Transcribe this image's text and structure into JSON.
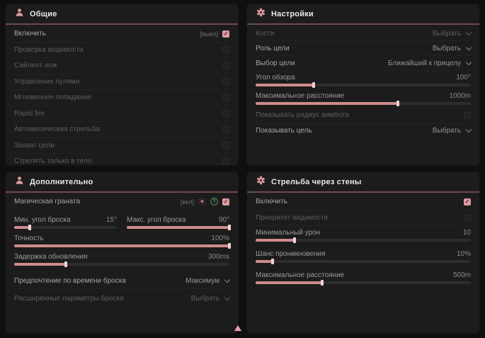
{
  "colors": {
    "accent_pink": "#dc969c",
    "slider_fill": "#cf8b8d",
    "panel_bg": "#1c1c1c",
    "page_bg": "#0f0f0f",
    "header_divider": "#6d4b50"
  },
  "panels": {
    "general": {
      "title": "Общие",
      "rows": [
        {
          "label": "Включить",
          "state": "[выкл]",
          "checked": true
        },
        {
          "label": "Проверка видимости",
          "checked": false
        },
        {
          "label": "Сайлент нож",
          "checked": false
        },
        {
          "label": "Управление пулями",
          "checked": false
        },
        {
          "label": "Мгновенное попадание",
          "checked": false
        },
        {
          "label": "Rapid fire",
          "checked": false
        },
        {
          "label": "Автоматическая стрельба",
          "checked": false
        },
        {
          "label": "Захват цели",
          "checked": false
        },
        {
          "label": "Стрелять только в тело",
          "checked": false
        }
      ]
    },
    "settings": {
      "title": "Настройки",
      "rows": {
        "bones": {
          "label": "Кости",
          "value": "Выбрать"
        },
        "target_role": {
          "label": "Роль цели",
          "value": "Выбрать"
        },
        "target_select": {
          "label": "Выбор цели",
          "value": "Ближайший к прицелу"
        },
        "fov": {
          "label": "Угол обзора",
          "value": "100°",
          "fill": 27
        },
        "max_distance": {
          "label": "Максимальное расстояние",
          "value": "1000m",
          "fill": 66
        },
        "show_radius": {
          "label": "Показывать радиус аимбота",
          "checked": false
        },
        "show_target": {
          "label": "Показывать цель",
          "value": "Выбрать"
        }
      }
    },
    "additional": {
      "title": "Дополнительно",
      "rows": {
        "magic_grenade": {
          "label": "Магическая граната",
          "state": "[вкл]",
          "checked": true
        },
        "min_angle": {
          "label": "Мин. угол броска",
          "value": "15°",
          "fill": 15
        },
        "max_angle": {
          "label": "Макс. угол броска",
          "value": "90°",
          "fill": 100
        },
        "accuracy": {
          "label": "Точность",
          "value": "100%",
          "fill": 100
        },
        "delay": {
          "label": "Задержка обновления",
          "value": "300ms",
          "fill": 24
        },
        "throw_time": {
          "label": "Предпочтение по времени броска",
          "value": "Максимум"
        },
        "advanced": {
          "label": "Расширенные параметры броска",
          "value": "Выбрать"
        }
      }
    },
    "wallbang": {
      "title": "Стрельба через стены",
      "rows": {
        "enable": {
          "label": "Включить",
          "checked": true
        },
        "visibility_priority": {
          "label": "Приоритет видимости",
          "checked": false
        },
        "min_damage": {
          "label": "Минимальный урон",
          "value": "10",
          "fill": 18
        },
        "penetration": {
          "label": "Шанс проникновения",
          "value": "10%",
          "fill": 8
        },
        "max_distance": {
          "label": "Максимальное расстояние",
          "value": "500m",
          "fill": 31
        }
      }
    }
  },
  "glyphs": {
    "check": "✓",
    "heart": "♥",
    "question": "?"
  }
}
